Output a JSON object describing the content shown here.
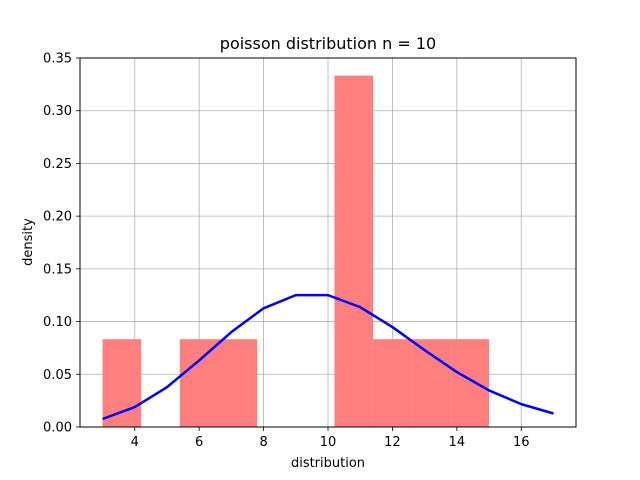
{
  "chart_data": {
    "type": "bar",
    "title": "poisson distribution n = 10",
    "xlabel": "distribution",
    "ylabel": "density",
    "xlim": [
      2.3,
      17.7
    ],
    "ylim": [
      0,
      0.35
    ],
    "grid": true,
    "xticks": [
      4,
      6,
      8,
      10,
      12,
      14,
      16
    ],
    "yticks": [
      0.0,
      0.05,
      0.1,
      0.15,
      0.2,
      0.25,
      0.3,
      0.35
    ],
    "ytick_labels": [
      "0.00",
      "0.05",
      "0.10",
      "0.15",
      "0.20",
      "0.25",
      "0.30",
      "0.35"
    ],
    "histogram": {
      "color": "#ff7f7f",
      "bins": [
        {
          "x0": 3.0,
          "x1": 4.2,
          "density": 0.0833
        },
        {
          "x0": 4.2,
          "x1": 5.4,
          "density": 0.0
        },
        {
          "x0": 5.4,
          "x1": 6.6,
          "density": 0.0833
        },
        {
          "x0": 6.6,
          "x1": 7.8,
          "density": 0.0833
        },
        {
          "x0": 7.8,
          "x1": 9.0,
          "density": 0.0
        },
        {
          "x0": 9.0,
          "x1": 10.2,
          "density": 0.0
        },
        {
          "x0": 10.2,
          "x1": 11.4,
          "density": 0.3333
        },
        {
          "x0": 11.4,
          "x1": 12.6,
          "density": 0.0833
        },
        {
          "x0": 12.6,
          "x1": 13.8,
          "density": 0.0833
        },
        {
          "x0": 13.8,
          "x1": 15.0,
          "density": 0.0833
        }
      ]
    },
    "line": {
      "color": "#0000ff",
      "x": [
        3,
        4,
        5,
        6,
        7,
        8,
        9,
        10,
        11,
        12,
        13,
        14,
        15,
        16,
        17
      ],
      "y": [
        0.0076,
        0.0189,
        0.0378,
        0.0631,
        0.0901,
        0.1126,
        0.1251,
        0.1251,
        0.1137,
        0.0948,
        0.0729,
        0.0521,
        0.0347,
        0.0217,
        0.0128
      ]
    }
  }
}
